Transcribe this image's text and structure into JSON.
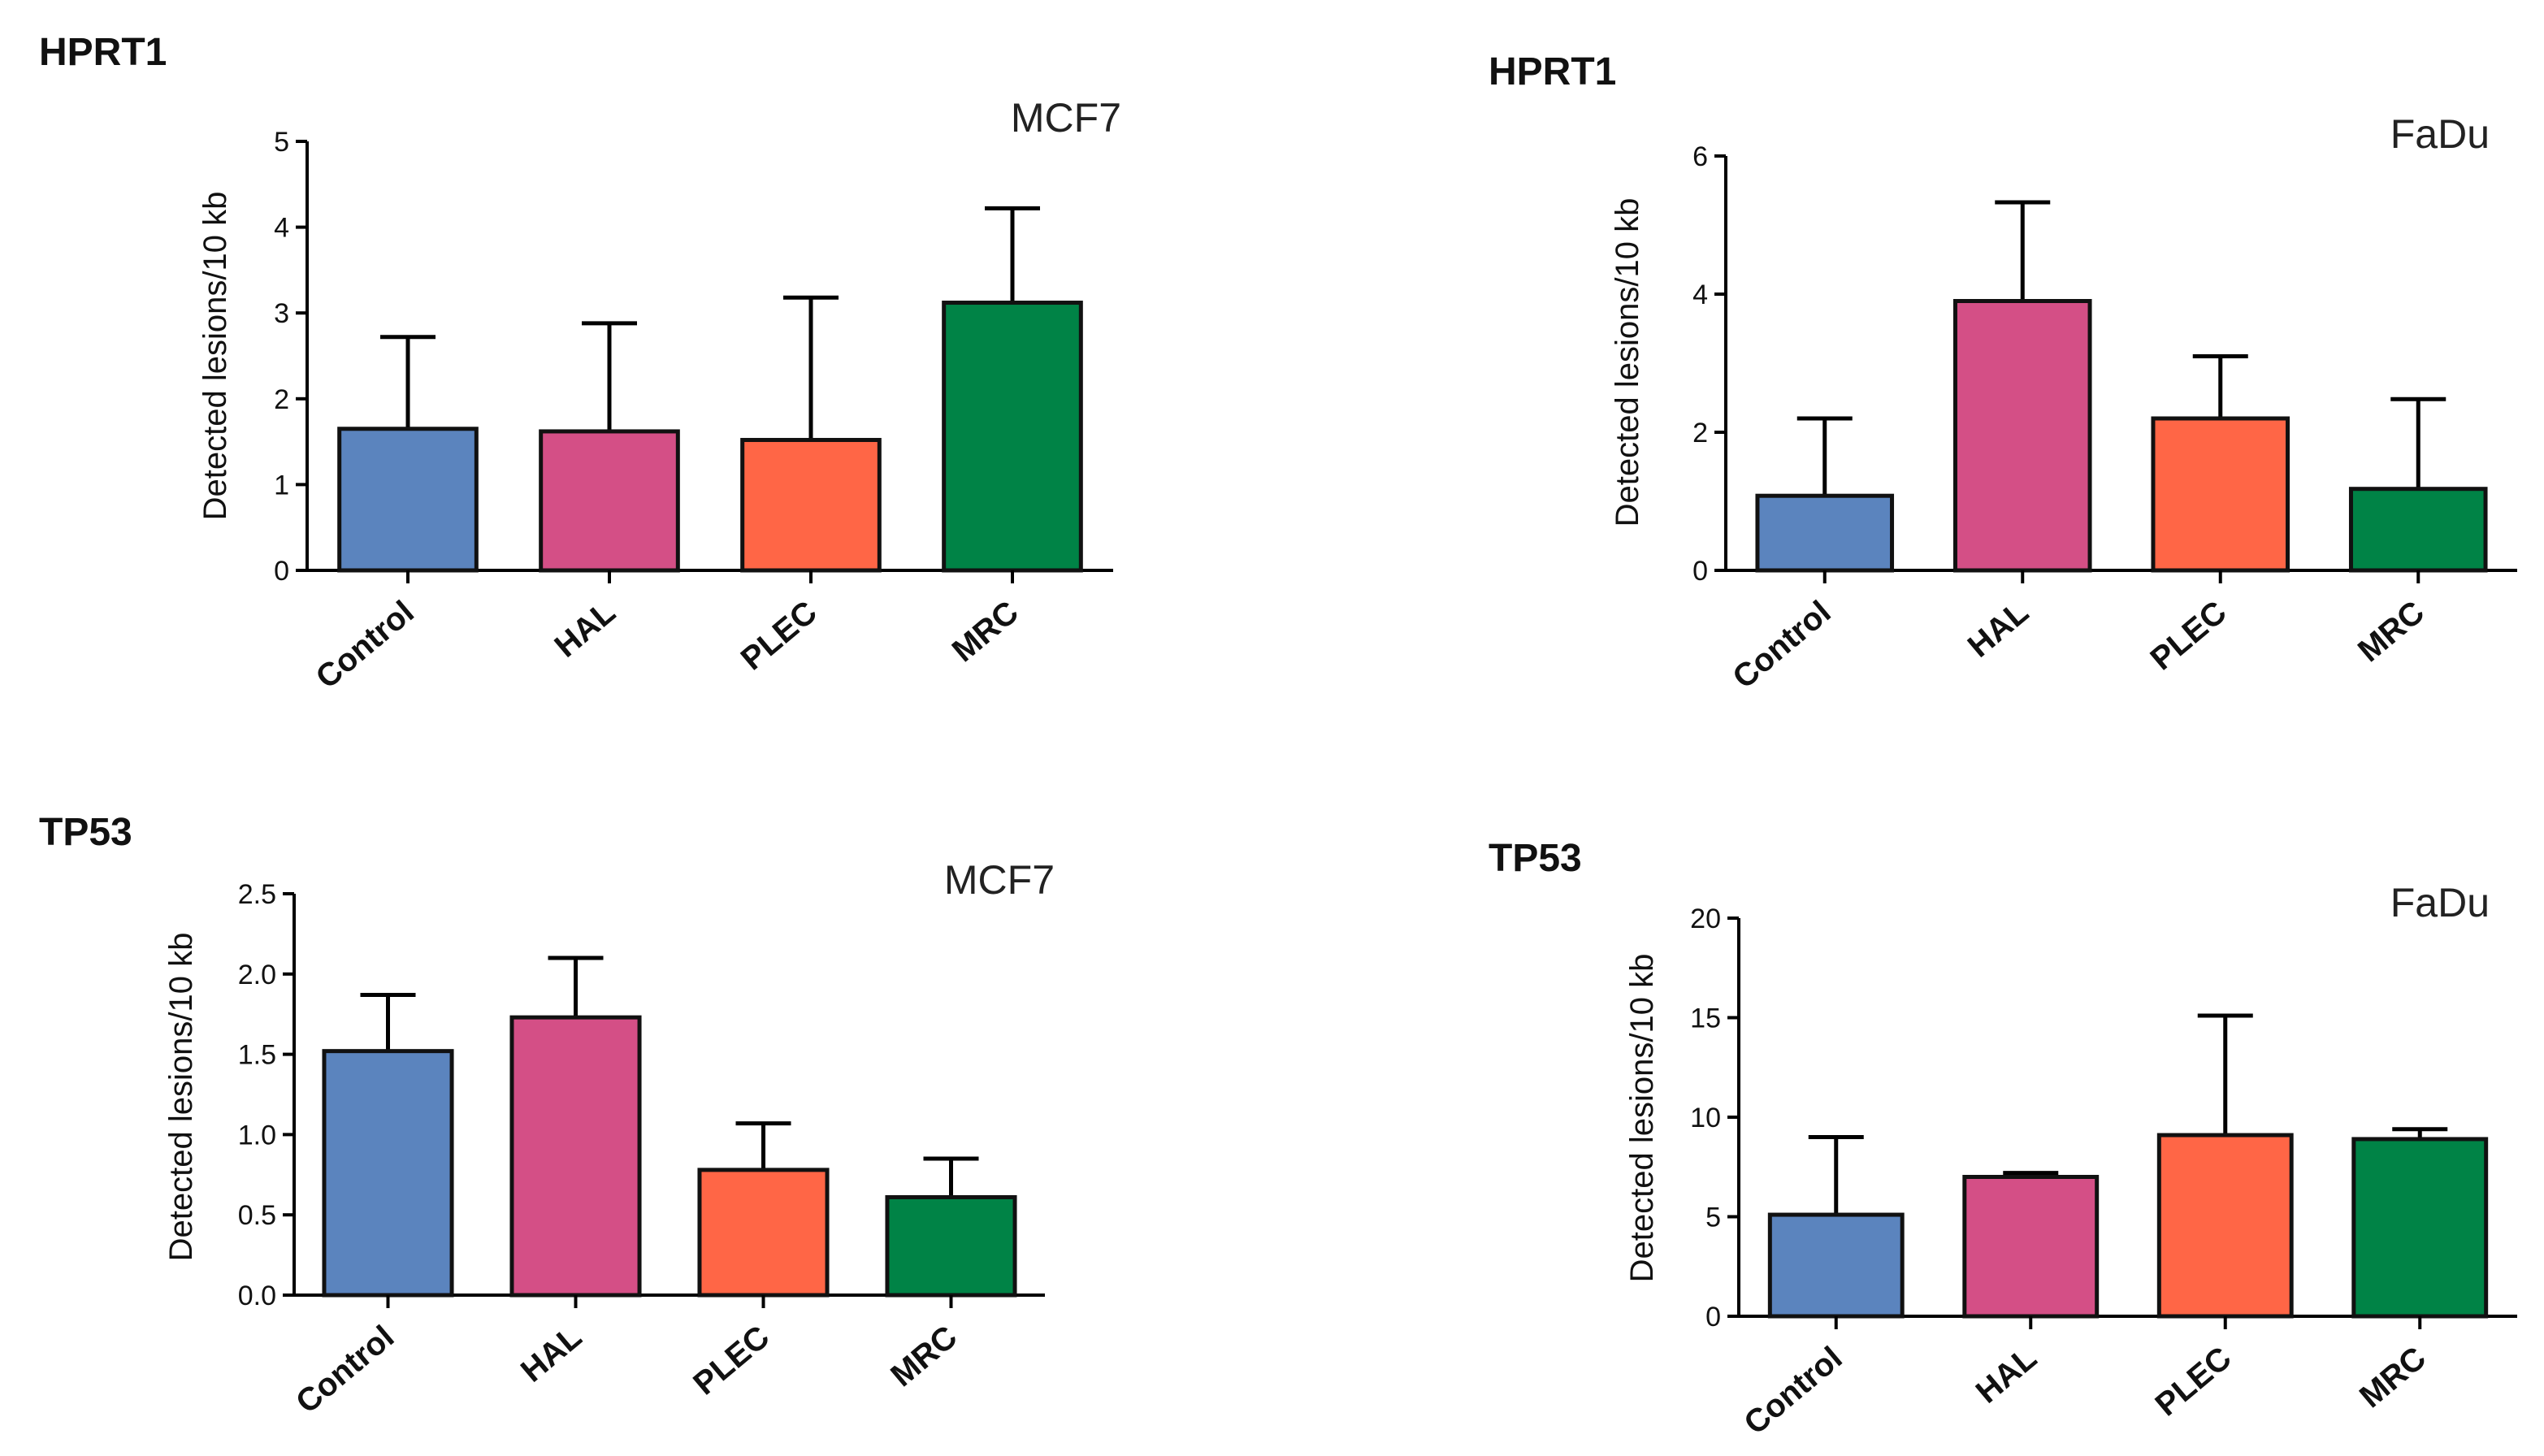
{
  "chart_data": [
    {
      "type": "bar",
      "title": "HPRT1",
      "subtitle": "MCF7",
      "xlabel": "",
      "ylabel": "Detected lesions/10 kb",
      "categories": [
        "Control",
        "HAL",
        "PLEC",
        "MRC"
      ],
      "values": [
        1.65,
        1.62,
        1.52,
        3.12
      ],
      "errors": [
        1.07,
        1.26,
        1.66,
        1.1
      ],
      "colors": [
        "#5B84BE",
        "#D44F86",
        "#FF6646",
        "#008346"
      ],
      "ylim": [
        0,
        5
      ],
      "yticks": [
        "0",
        "1",
        "2",
        "3",
        "4",
        "5"
      ],
      "grid": false,
      "legend": "none"
    },
    {
      "type": "bar",
      "title": "HPRT1",
      "subtitle": "FaDu",
      "xlabel": "",
      "ylabel": "Detected lesions/10 kb",
      "categories": [
        "Control",
        "HAL",
        "PLEC",
        "MRC"
      ],
      "values": [
        1.08,
        3.9,
        2.2,
        1.18
      ],
      "errors": [
        1.12,
        1.43,
        0.9,
        1.3
      ],
      "colors": [
        "#5B84BE",
        "#D44F86",
        "#FF6646",
        "#008346"
      ],
      "ylim": [
        0,
        6
      ],
      "yticks": [
        "0",
        "2",
        "4",
        "6"
      ],
      "grid": false,
      "legend": "none"
    },
    {
      "type": "bar",
      "title": "TP53",
      "subtitle": "MCF7",
      "xlabel": "",
      "ylabel": "Detected lesions/10 kb",
      "categories": [
        "Control",
        "HAL",
        "PLEC",
        "MRC"
      ],
      "values": [
        1.52,
        1.73,
        0.78,
        0.61
      ],
      "errors": [
        0.35,
        0.37,
        0.29,
        0.24
      ],
      "colors": [
        "#5B84BE",
        "#D44F86",
        "#FF6646",
        "#008346"
      ],
      "ylim": [
        0,
        2.5
      ],
      "yticks": [
        "0.0",
        "0.5",
        "1.0",
        "1.5",
        "2.0",
        "2.5"
      ],
      "grid": false,
      "legend": "none"
    },
    {
      "type": "bar",
      "title": "TP53",
      "subtitle": "FaDu",
      "xlabel": "",
      "ylabel": "Detected lesions/10 kb",
      "categories": [
        "Control",
        "HAL",
        "PLEC",
        "MRC"
      ],
      "values": [
        5.1,
        7.0,
        9.1,
        8.9
      ],
      "errors": [
        3.9,
        0.2,
        6.0,
        0.5
      ],
      "colors": [
        "#5B84BE",
        "#D44F86",
        "#FF6646",
        "#008346"
      ],
      "ylim": [
        0,
        20
      ],
      "yticks": [
        "0",
        "5",
        "10",
        "15",
        "20"
      ],
      "grid": false,
      "legend": "none"
    }
  ]
}
